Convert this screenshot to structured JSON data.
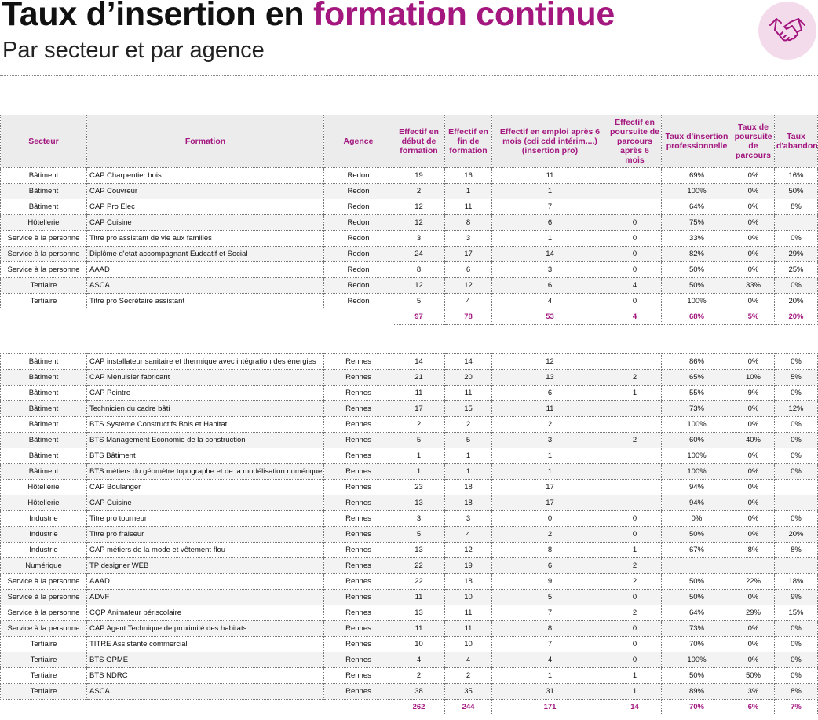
{
  "header": {
    "title_start": "Taux d’insertion en",
    "title_accent": "formation continue",
    "subtitle": "Par secteur et par agence"
  },
  "columns": [
    "Secteur",
    "Formation",
    "Agence",
    "Effectif en début de formation",
    "Effectif en fin de formation",
    "Effectif en emploi après 6 mois (cdi cdd intérim....) (insertion pro)",
    "Effectif en poursuite de parcours après 6 mois",
    "Taux d'insertion professionnelle",
    "Taux de poursuite de parcours",
    "Taux d'abandon"
  ],
  "tables": [
    {
      "rows": [
        [
          "Bâtiment",
          "CAP Charpentier bois",
          "Redon",
          19,
          16,
          11,
          null,
          "69%",
          "0%",
          "16%"
        ],
        [
          "Bâtiment",
          "CAP Couvreur",
          "Redon",
          2,
          1,
          1,
          null,
          "100%",
          "0%",
          "50%"
        ],
        [
          "Bâtiment",
          "CAP Pro Elec",
          "Redon",
          12,
          11,
          7,
          null,
          "64%",
          "0%",
          "8%"
        ],
        [
          "Hôtellerie",
          "CAP Cuisine",
          "Redon",
          12,
          8,
          6,
          0,
          "75%",
          "0%",
          null
        ],
        [
          "Service à la personne",
          "Titre pro assistant de vie aux familles",
          "Redon",
          3,
          3,
          1,
          0,
          "33%",
          "0%",
          "0%"
        ],
        [
          "Service à la personne",
          "Diplôme d'etat accompagnant Eudcatif et Social",
          "Redon",
          24,
          17,
          14,
          0,
          "82%",
          "0%",
          "29%"
        ],
        [
          "Service à la personne",
          "AAAD",
          "Redon",
          8,
          6,
          3,
          0,
          "50%",
          "0%",
          "25%"
        ],
        [
          "Tertiaire",
          "ASCA",
          "Redon",
          12,
          12,
          6,
          4,
          "50%",
          "33%",
          "0%"
        ],
        [
          "Tertiaire",
          "Titre pro Secrétaire assistant",
          "Redon",
          5,
          4,
          4,
          0,
          "100%",
          "0%",
          "20%"
        ]
      ],
      "totals": [
        97,
        78,
        53,
        4,
        "68%",
        "5%",
        "20%"
      ]
    },
    {
      "rows": [
        [
          "Bâtiment",
          "CAP installateur sanitaire et thermique avec intégration des énergies",
          "Rennes",
          14,
          14,
          12,
          null,
          "86%",
          "0%",
          "0%"
        ],
        [
          "Bâtiment",
          "CAP Menuisier fabricant",
          "Rennes",
          21,
          20,
          13,
          2,
          "65%",
          "10%",
          "5%"
        ],
        [
          "Bâtiment",
          "CAP Peintre",
          "Rennes",
          11,
          11,
          6,
          1,
          "55%",
          "9%",
          "0%"
        ],
        [
          "Bâtiment",
          "Technicien du cadre bâti",
          "Rennes",
          17,
          15,
          11,
          null,
          "73%",
          "0%",
          "12%"
        ],
        [
          "Bâtiment",
          "BTS Système Constructifs Bois et Habitat",
          "Rennes",
          2,
          2,
          2,
          null,
          "100%",
          "0%",
          "0%"
        ],
        [
          "Bâtiment",
          "BTS Management Economie de la construction",
          "Rennes",
          5,
          5,
          3,
          2,
          "60%",
          "40%",
          "0%"
        ],
        [
          "Bâtiment",
          "BTS Bâtiment",
          "Rennes",
          1,
          1,
          1,
          null,
          "100%",
          "0%",
          "0%"
        ],
        [
          "Bâtiment",
          "BTS métiers du géomètre topographe et de la modélisation numérique",
          "Rennes",
          1,
          1,
          1,
          null,
          "100%",
          "0%",
          "0%"
        ],
        [
          "Hôtellerie",
          "CAP Boulanger",
          "Rennes",
          23,
          18,
          17,
          null,
          "94%",
          "0%",
          null
        ],
        [
          "Hôtellerie",
          "CAP Cuisine",
          "Rennes",
          13,
          18,
          17,
          null,
          "94%",
          "0%",
          null
        ],
        [
          "Industrie",
          "Titre pro tourneur",
          "Rennes",
          3,
          3,
          0,
          0,
          "0%",
          "0%",
          "0%"
        ],
        [
          "Industrie",
          "Titre pro fraiseur",
          "Rennes",
          5,
          4,
          2,
          0,
          "50%",
          "0%",
          "20%"
        ],
        [
          "Industrie",
          "CAP métiers de la mode et vêtement flou",
          "Rennes",
          13,
          12,
          8,
          1,
          "67%",
          "8%",
          "8%"
        ],
        [
          "Numérique",
          "TP designer WEB",
          "Rennes",
          22,
          19,
          6,
          2,
          null,
          null,
          null
        ],
        [
          "Service à la personne",
          "AAAD",
          "Rennes",
          22,
          18,
          9,
          2,
          "50%",
          "22%",
          "18%"
        ],
        [
          "Service à la personne",
          "ADVF",
          "Rennes",
          11,
          10,
          5,
          0,
          "50%",
          "0%",
          "9%"
        ],
        [
          "Service à la personne",
          "CQP Animateur périscolaire",
          "Rennes",
          13,
          11,
          7,
          2,
          "64%",
          "29%",
          "15%"
        ],
        [
          "Service à la personne",
          "CAP Agent Technique de proximité des habitats",
          "Rennes",
          11,
          11,
          8,
          0,
          "73%",
          "0%",
          "0%"
        ],
        [
          "Tertiaire",
          "TITRE Assistante commercial",
          "Rennes",
          10,
          10,
          7,
          0,
          "70%",
          "0%",
          "0%"
        ],
        [
          "Tertiaire",
          "BTS GPME",
          "Rennes",
          4,
          4,
          4,
          0,
          "100%",
          "0%",
          "0%"
        ],
        [
          "Tertiaire",
          "BTS NDRC",
          "Rennes",
          2,
          2,
          1,
          1,
          "50%",
          "50%",
          "0%"
        ],
        [
          "Tertiaire",
          "ASCA",
          "Rennes",
          38,
          35,
          31,
          1,
          "89%",
          "3%",
          "8%"
        ]
      ],
      "totals": [
        262,
        244,
        171,
        14,
        "70%",
        "6%",
        "7%"
      ]
    }
  ]
}
